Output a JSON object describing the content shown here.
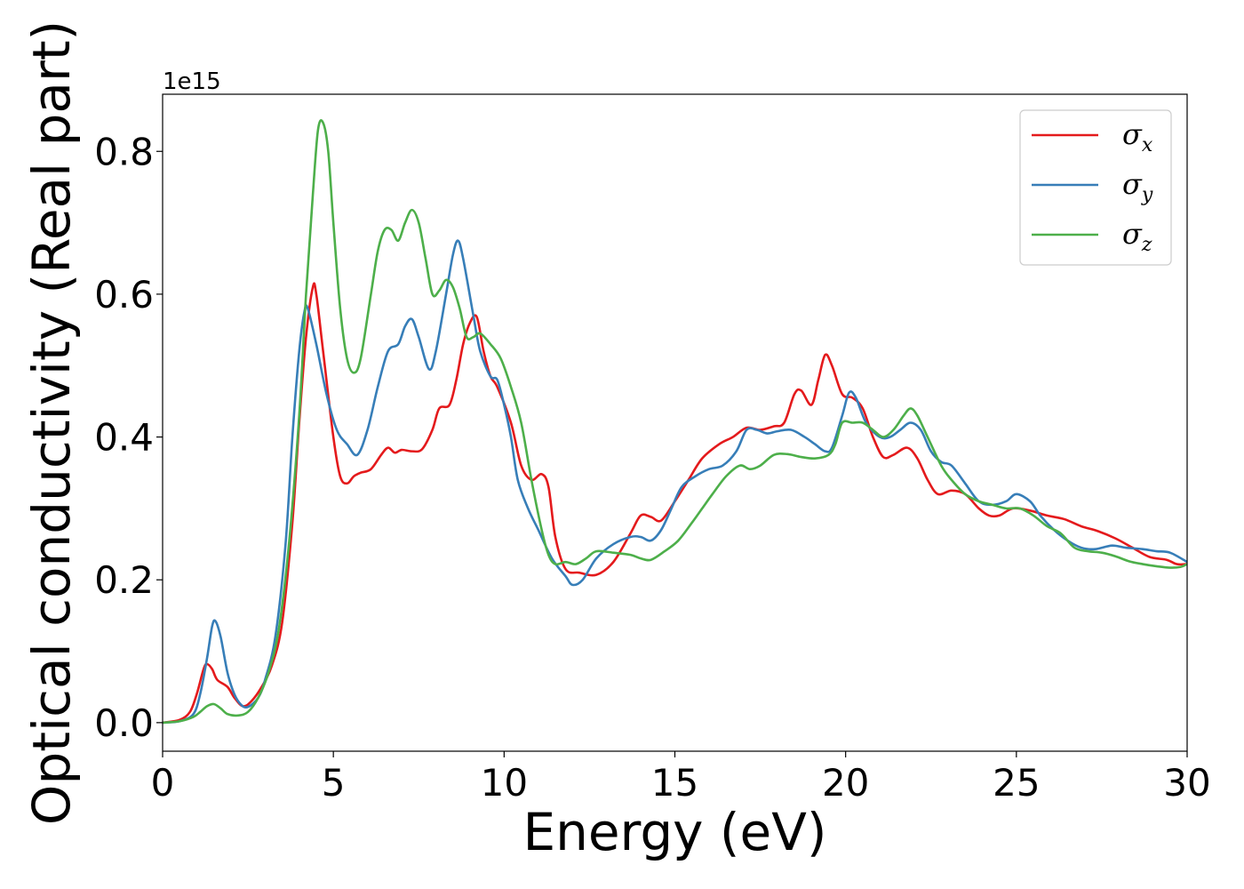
{
  "chart_data": {
    "type": "line",
    "xlabel": "Energy (eV)",
    "ylabel": "Optical conductivity (Real part)",
    "y_offset_label": "1e15",
    "xlim": [
      0,
      30
    ],
    "ylim": [
      -0.04,
      0.88
    ],
    "x_ticks": [
      0,
      5,
      10,
      15,
      20,
      25,
      30
    ],
    "x_tick_labels": [
      "0",
      "5",
      "10",
      "15",
      "20",
      "25",
      "30"
    ],
    "y_ticks": [
      0.0,
      0.2,
      0.4,
      0.6,
      0.8
    ],
    "y_tick_labels": [
      "0.0",
      "0.2",
      "0.4",
      "0.6",
      "0.8"
    ],
    "grid": false,
    "legend_position": "top-right",
    "series": [
      {
        "name": "σx",
        "symbol": "σ",
        "subscript": "x",
        "color": "#e41a1c",
        "points": [
          [
            0,
            0
          ],
          [
            0.5,
            0.004
          ],
          [
            0.8,
            0.015
          ],
          [
            1.0,
            0.04
          ],
          [
            1.2,
            0.075
          ],
          [
            1.3,
            0.082
          ],
          [
            1.45,
            0.075
          ],
          [
            1.6,
            0.06
          ],
          [
            1.9,
            0.05
          ],
          [
            2.1,
            0.035
          ],
          [
            2.35,
            0.023
          ],
          [
            2.6,
            0.03
          ],
          [
            2.9,
            0.05
          ],
          [
            3.2,
            0.08
          ],
          [
            3.5,
            0.14
          ],
          [
            3.8,
            0.28
          ],
          [
            4.0,
            0.42
          ],
          [
            4.2,
            0.54
          ],
          [
            4.4,
            0.61
          ],
          [
            4.5,
            0.6
          ],
          [
            4.7,
            0.52
          ],
          [
            5.0,
            0.4
          ],
          [
            5.2,
            0.345
          ],
          [
            5.4,
            0.335
          ],
          [
            5.6,
            0.345
          ],
          [
            5.8,
            0.35
          ],
          [
            6.1,
            0.355
          ],
          [
            6.4,
            0.375
          ],
          [
            6.6,
            0.385
          ],
          [
            6.8,
            0.378
          ],
          [
            7.0,
            0.382
          ],
          [
            7.3,
            0.38
          ],
          [
            7.6,
            0.383
          ],
          [
            7.9,
            0.41
          ],
          [
            8.1,
            0.44
          ],
          [
            8.4,
            0.445
          ],
          [
            8.6,
            0.48
          ],
          [
            8.8,
            0.53
          ],
          [
            9.0,
            0.56
          ],
          [
            9.2,
            0.568
          ],
          [
            9.4,
            0.52
          ],
          [
            9.6,
            0.485
          ],
          [
            9.8,
            0.47
          ],
          [
            10.2,
            0.42
          ],
          [
            10.5,
            0.36
          ],
          [
            10.8,
            0.34
          ],
          [
            11.1,
            0.348
          ],
          [
            11.3,
            0.33
          ],
          [
            11.5,
            0.26
          ],
          [
            11.8,
            0.215
          ],
          [
            12.2,
            0.21
          ],
          [
            12.7,
            0.207
          ],
          [
            13.2,
            0.225
          ],
          [
            13.7,
            0.265
          ],
          [
            14.0,
            0.29
          ],
          [
            14.3,
            0.288
          ],
          [
            14.6,
            0.283
          ],
          [
            15.0,
            0.31
          ],
          [
            15.4,
            0.34
          ],
          [
            15.8,
            0.37
          ],
          [
            16.3,
            0.39
          ],
          [
            16.7,
            0.4
          ],
          [
            17.1,
            0.413
          ],
          [
            17.5,
            0.41
          ],
          [
            17.9,
            0.415
          ],
          [
            18.2,
            0.42
          ],
          [
            18.5,
            0.46
          ],
          [
            18.7,
            0.465
          ],
          [
            19.0,
            0.445
          ],
          [
            19.2,
            0.48
          ],
          [
            19.4,
            0.515
          ],
          [
            19.6,
            0.5
          ],
          [
            19.9,
            0.46
          ],
          [
            20.2,
            0.455
          ],
          [
            20.5,
            0.44
          ],
          [
            20.8,
            0.4
          ],
          [
            21.1,
            0.372
          ],
          [
            21.4,
            0.375
          ],
          [
            21.8,
            0.385
          ],
          [
            22.1,
            0.37
          ],
          [
            22.4,
            0.34
          ],
          [
            22.7,
            0.32
          ],
          [
            23.1,
            0.325
          ],
          [
            23.5,
            0.32
          ],
          [
            23.9,
            0.3
          ],
          [
            24.2,
            0.29
          ],
          [
            24.5,
            0.29
          ],
          [
            24.9,
            0.3
          ],
          [
            25.4,
            0.297
          ],
          [
            25.9,
            0.29
          ],
          [
            26.4,
            0.285
          ],
          [
            26.9,
            0.275
          ],
          [
            27.4,
            0.268
          ],
          [
            27.9,
            0.258
          ],
          [
            28.4,
            0.245
          ],
          [
            28.9,
            0.232
          ],
          [
            29.4,
            0.228
          ],
          [
            29.7,
            0.222
          ],
          [
            30.0,
            0.222
          ]
        ]
      },
      {
        "name": "σy",
        "symbol": "σ",
        "subscript": "y",
        "color": "#377eb8",
        "points": [
          [
            0,
            0
          ],
          [
            0.5,
            0.002
          ],
          [
            0.9,
            0.012
          ],
          [
            1.1,
            0.04
          ],
          [
            1.3,
            0.09
          ],
          [
            1.45,
            0.135
          ],
          [
            1.55,
            0.142
          ],
          [
            1.7,
            0.12
          ],
          [
            1.9,
            0.07
          ],
          [
            2.1,
            0.04
          ],
          [
            2.3,
            0.025
          ],
          [
            2.5,
            0.022
          ],
          [
            2.8,
            0.035
          ],
          [
            3.0,
            0.06
          ],
          [
            3.3,
            0.12
          ],
          [
            3.6,
            0.25
          ],
          [
            3.8,
            0.4
          ],
          [
            4.0,
            0.52
          ],
          [
            4.15,
            0.575
          ],
          [
            4.25,
            0.58
          ],
          [
            4.5,
            0.53
          ],
          [
            4.8,
            0.46
          ],
          [
            5.1,
            0.41
          ],
          [
            5.4,
            0.39
          ],
          [
            5.7,
            0.375
          ],
          [
            6.0,
            0.41
          ],
          [
            6.3,
            0.47
          ],
          [
            6.6,
            0.52
          ],
          [
            6.9,
            0.53
          ],
          [
            7.1,
            0.555
          ],
          [
            7.3,
            0.565
          ],
          [
            7.5,
            0.54
          ],
          [
            7.8,
            0.495
          ],
          [
            8.0,
            0.52
          ],
          [
            8.3,
            0.6
          ],
          [
            8.5,
            0.655
          ],
          [
            8.65,
            0.675
          ],
          [
            8.8,
            0.65
          ],
          [
            9.1,
            0.57
          ],
          [
            9.3,
            0.52
          ],
          [
            9.6,
            0.485
          ],
          [
            9.8,
            0.48
          ],
          [
            10.0,
            0.445
          ],
          [
            10.2,
            0.4
          ],
          [
            10.4,
            0.34
          ],
          [
            10.7,
            0.3
          ],
          [
            11.0,
            0.27
          ],
          [
            11.4,
            0.23
          ],
          [
            11.8,
            0.205
          ],
          [
            12.0,
            0.193
          ],
          [
            12.3,
            0.2
          ],
          [
            12.7,
            0.23
          ],
          [
            13.2,
            0.25
          ],
          [
            13.7,
            0.26
          ],
          [
            14.0,
            0.26
          ],
          [
            14.3,
            0.255
          ],
          [
            14.6,
            0.27
          ],
          [
            14.9,
            0.3
          ],
          [
            15.2,
            0.33
          ],
          [
            15.6,
            0.345
          ],
          [
            16.0,
            0.355
          ],
          [
            16.4,
            0.36
          ],
          [
            16.8,
            0.38
          ],
          [
            17.1,
            0.41
          ],
          [
            17.4,
            0.41
          ],
          [
            17.7,
            0.405
          ],
          [
            18.0,
            0.408
          ],
          [
            18.4,
            0.41
          ],
          [
            18.8,
            0.4
          ],
          [
            19.1,
            0.39
          ],
          [
            19.4,
            0.38
          ],
          [
            19.6,
            0.385
          ],
          [
            19.9,
            0.43
          ],
          [
            20.1,
            0.462
          ],
          [
            20.3,
            0.455
          ],
          [
            20.6,
            0.42
          ],
          [
            21.0,
            0.4
          ],
          [
            21.3,
            0.4
          ],
          [
            21.6,
            0.41
          ],
          [
            21.9,
            0.42
          ],
          [
            22.2,
            0.41
          ],
          [
            22.5,
            0.38
          ],
          [
            22.8,
            0.365
          ],
          [
            23.1,
            0.36
          ],
          [
            23.5,
            0.335
          ],
          [
            23.9,
            0.31
          ],
          [
            24.3,
            0.305
          ],
          [
            24.7,
            0.31
          ],
          [
            25.0,
            0.32
          ],
          [
            25.4,
            0.31
          ],
          [
            25.7,
            0.29
          ],
          [
            26.1,
            0.27
          ],
          [
            26.5,
            0.255
          ],
          [
            26.9,
            0.245
          ],
          [
            27.3,
            0.243
          ],
          [
            27.8,
            0.248
          ],
          [
            28.2,
            0.245
          ],
          [
            28.7,
            0.243
          ],
          [
            29.1,
            0.24
          ],
          [
            29.5,
            0.238
          ],
          [
            30.0,
            0.225
          ]
        ]
      },
      {
        "name": "σz",
        "symbol": "σ",
        "subscript": "z",
        "color": "#4daf4a",
        "points": [
          [
            0,
            0
          ],
          [
            0.5,
            0.002
          ],
          [
            0.9,
            0.008
          ],
          [
            1.1,
            0.015
          ],
          [
            1.3,
            0.023
          ],
          [
            1.5,
            0.026
          ],
          [
            1.7,
            0.02
          ],
          [
            1.9,
            0.012
          ],
          [
            2.2,
            0.01
          ],
          [
            2.5,
            0.015
          ],
          [
            2.8,
            0.035
          ],
          [
            3.1,
            0.07
          ],
          [
            3.4,
            0.13
          ],
          [
            3.7,
            0.25
          ],
          [
            4.0,
            0.43
          ],
          [
            4.2,
            0.6
          ],
          [
            4.4,
            0.74
          ],
          [
            4.55,
            0.83
          ],
          [
            4.7,
            0.84
          ],
          [
            4.85,
            0.8
          ],
          [
            5.0,
            0.7
          ],
          [
            5.2,
            0.58
          ],
          [
            5.4,
            0.51
          ],
          [
            5.6,
            0.49
          ],
          [
            5.8,
            0.51
          ],
          [
            6.1,
            0.6
          ],
          [
            6.3,
            0.66
          ],
          [
            6.5,
            0.69
          ],
          [
            6.7,
            0.69
          ],
          [
            6.9,
            0.675
          ],
          [
            7.1,
            0.7
          ],
          [
            7.3,
            0.718
          ],
          [
            7.5,
            0.7
          ],
          [
            7.7,
            0.65
          ],
          [
            7.9,
            0.6
          ],
          [
            8.1,
            0.605
          ],
          [
            8.3,
            0.62
          ],
          [
            8.5,
            0.61
          ],
          [
            8.7,
            0.58
          ],
          [
            8.9,
            0.54
          ],
          [
            9.1,
            0.54
          ],
          [
            9.3,
            0.545
          ],
          [
            9.6,
            0.53
          ],
          [
            9.9,
            0.51
          ],
          [
            10.2,
            0.47
          ],
          [
            10.5,
            0.42
          ],
          [
            10.8,
            0.34
          ],
          [
            11.1,
            0.27
          ],
          [
            11.3,
            0.235
          ],
          [
            11.5,
            0.222
          ],
          [
            11.8,
            0.225
          ],
          [
            12.1,
            0.222
          ],
          [
            12.4,
            0.23
          ],
          [
            12.7,
            0.24
          ],
          [
            13.2,
            0.238
          ],
          [
            13.7,
            0.235
          ],
          [
            14.0,
            0.23
          ],
          [
            14.3,
            0.228
          ],
          [
            14.7,
            0.24
          ],
          [
            15.1,
            0.255
          ],
          [
            15.5,
            0.28
          ],
          [
            15.8,
            0.3
          ],
          [
            16.1,
            0.32
          ],
          [
            16.5,
            0.345
          ],
          [
            16.9,
            0.36
          ],
          [
            17.2,
            0.355
          ],
          [
            17.5,
            0.36
          ],
          [
            17.9,
            0.375
          ],
          [
            18.3,
            0.376
          ],
          [
            18.7,
            0.372
          ],
          [
            19.1,
            0.37
          ],
          [
            19.5,
            0.375
          ],
          [
            19.7,
            0.39
          ],
          [
            19.9,
            0.42
          ],
          [
            20.2,
            0.42
          ],
          [
            20.5,
            0.42
          ],
          [
            20.8,
            0.41
          ],
          [
            21.1,
            0.4
          ],
          [
            21.4,
            0.41
          ],
          [
            21.7,
            0.43
          ],
          [
            21.9,
            0.44
          ],
          [
            22.1,
            0.43
          ],
          [
            22.4,
            0.4
          ],
          [
            22.8,
            0.36
          ],
          [
            23.1,
            0.34
          ],
          [
            23.5,
            0.32
          ],
          [
            23.9,
            0.31
          ],
          [
            24.3,
            0.305
          ],
          [
            24.7,
            0.3
          ],
          [
            25.1,
            0.3
          ],
          [
            25.5,
            0.29
          ],
          [
            25.9,
            0.275
          ],
          [
            26.3,
            0.265
          ],
          [
            26.7,
            0.245
          ],
          [
            27.1,
            0.24
          ],
          [
            27.5,
            0.238
          ],
          [
            27.9,
            0.233
          ],
          [
            28.3,
            0.226
          ],
          [
            28.7,
            0.222
          ],
          [
            29.1,
            0.219
          ],
          [
            29.5,
            0.217
          ],
          [
            29.8,
            0.218
          ],
          [
            30.0,
            0.222
          ]
        ]
      }
    ]
  }
}
